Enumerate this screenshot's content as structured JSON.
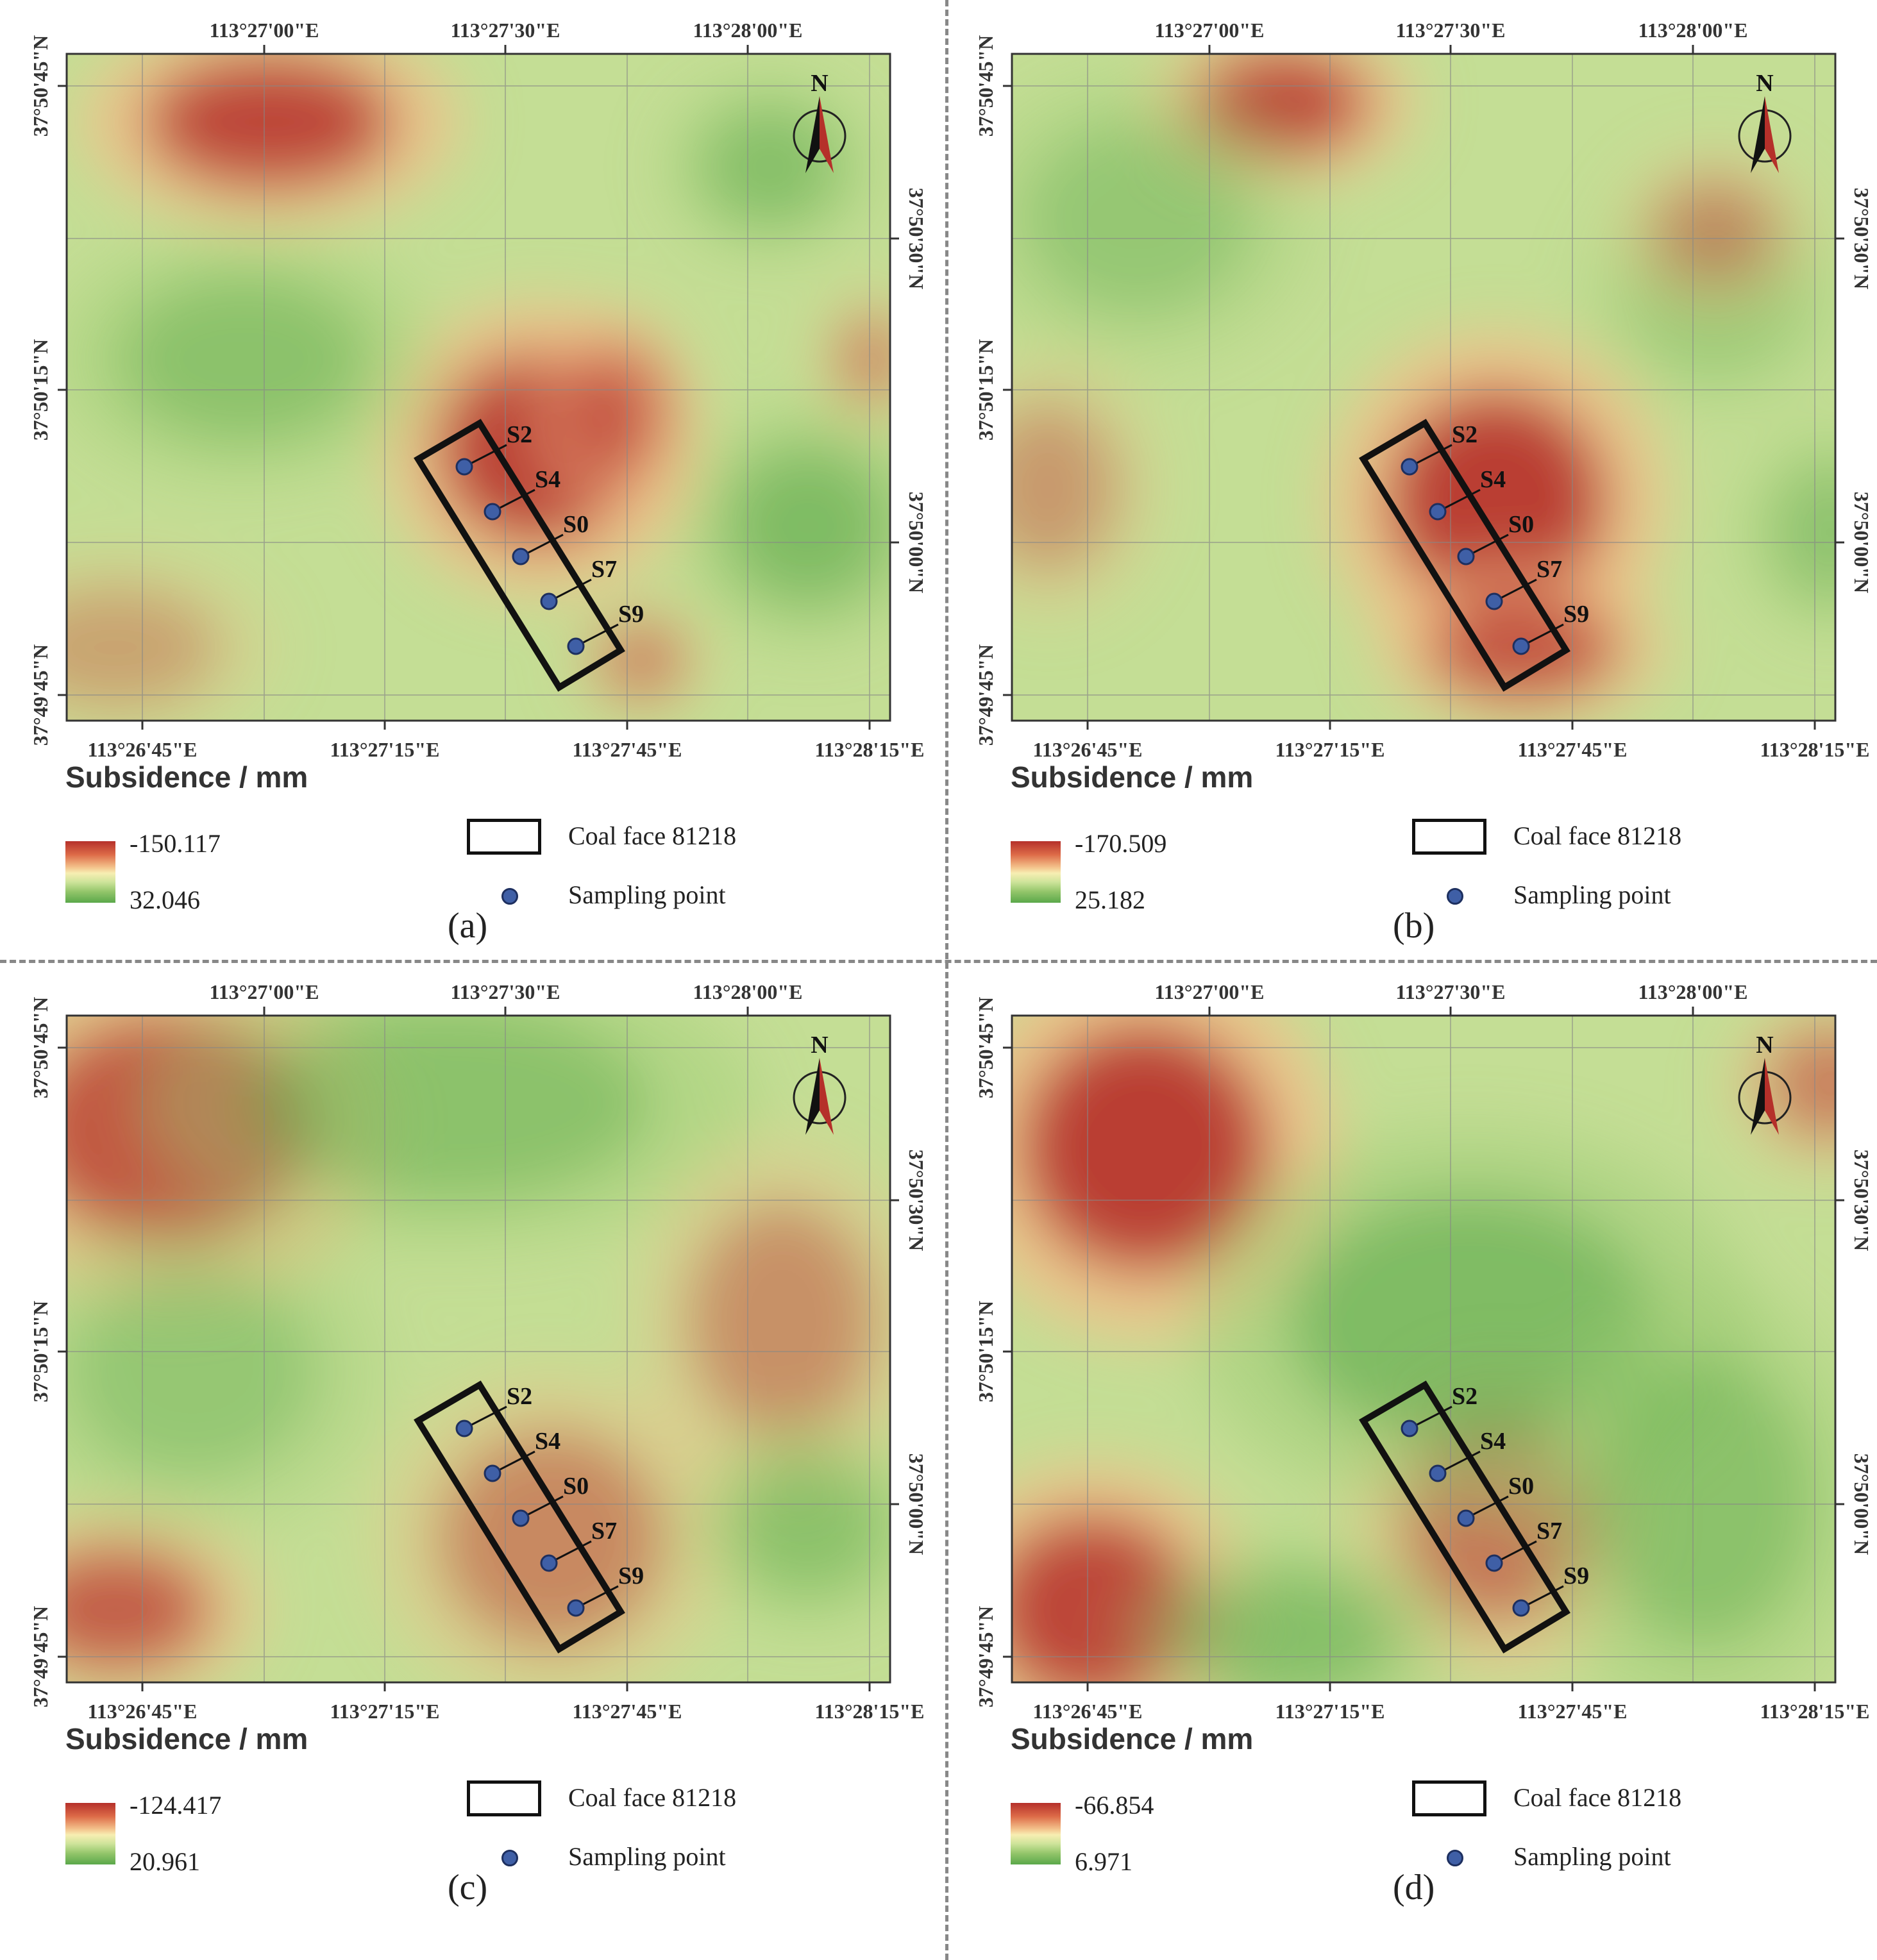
{
  "figure": {
    "legend_title": "Subsidence / mm",
    "coal_face_label": "Coal face 81218",
    "sampling_label": "Sampling point",
    "north_label": "N",
    "top_lon_ticks": [
      "113°27'00\"E",
      "113°27'30\"E",
      "113°28'00\"E"
    ],
    "bottom_lon_ticks": [
      "113°26'45\"E",
      "113°27'15\"E",
      "113°27'45\"E",
      "113°28'15\"E"
    ],
    "left_lat_ticks": [
      "37°50'45\"N",
      "37°50'15\"N",
      "37°49'45\"N"
    ],
    "right_lat_ticks": [
      "37°50'30\"N",
      "37°50'00\"N"
    ],
    "points": [
      "S2",
      "S4",
      "S0",
      "S7",
      "S9"
    ],
    "colors": {
      "subsidence": "#b5302a",
      "uplift": "#5aa84a",
      "neutral": "#f7eeb2",
      "point_fill": "#3f5fa6"
    }
  },
  "panels": [
    {
      "tag": "(a)",
      "max": "-150.117",
      "min": "32.046"
    },
    {
      "tag": "(b)",
      "max": "-170.509",
      "min": "25.182"
    },
    {
      "tag": "(c)",
      "max": "-124.417",
      "min": "20.961"
    },
    {
      "tag": "(d)",
      "max": "-66.854",
      "min": "6.971"
    }
  ]
}
